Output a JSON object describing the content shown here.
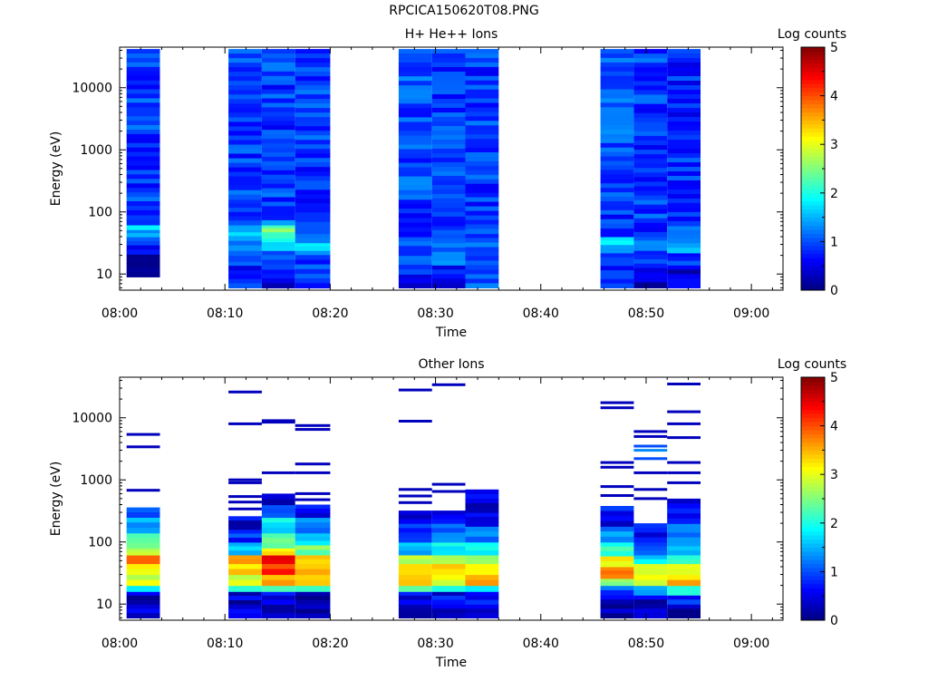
{
  "figure": {
    "title": "RPCICA150620T08.PNG"
  },
  "chart_data": [
    {
      "type": "heatmap",
      "title": "H+ He++ Ions",
      "xlabel": "Time",
      "ylabel": "Energy (eV)",
      "x_ticks": [
        "08:00",
        "08:10",
        "08:20",
        "08:30",
        "08:40",
        "08:50",
        "09:00"
      ],
      "y_ticks": [
        "10",
        "100",
        "1000",
        "10000"
      ],
      "xlim": [
        "08:00",
        "09:03"
      ],
      "ylim": [
        5.5,
        45000
      ],
      "yscale": "log",
      "colorbar": {
        "label": "Log counts",
        "range": [
          0,
          5
        ],
        "ticks": [
          "0",
          "1",
          "2",
          "3",
          "4",
          "5"
        ],
        "colormap": "jet"
      },
      "columns": [
        {
          "start": "08:00:40",
          "end": "08:03:50",
          "bands": [
            [
              9,
              21,
              0.3
            ],
            [
              21,
              40,
              0.8
            ],
            [
              40,
              52,
              1.5
            ],
            [
              52,
              62,
              1.8
            ],
            [
              62,
              90,
              1.0
            ],
            [
              90,
              42000,
              0.9
            ]
          ]
        },
        {
          "start": "08:10:20",
          "end": "08:13:30",
          "bands": [
            [
              6,
              16,
              0.8
            ],
            [
              16,
              24,
              0.9
            ],
            [
              24,
              35,
              1.3
            ],
            [
              35,
              48,
              1.5
            ],
            [
              48,
              62,
              1.2
            ],
            [
              62,
              160,
              0.9
            ],
            [
              160,
              42000,
              0.9
            ]
          ]
        },
        {
          "start": "08:13:30",
          "end": "08:16:40",
          "bands": [
            [
              6,
              12,
              0.5
            ],
            [
              12,
              24,
              0.9
            ],
            [
              24,
              38,
              1.9
            ],
            [
              38,
              48,
              2.2
            ],
            [
              48,
              62,
              2.4
            ],
            [
              62,
              75,
              1.5
            ],
            [
              75,
              42000,
              0.9
            ]
          ]
        },
        {
          "start": "08:16:40",
          "end": "08:20:00",
          "bands": [
            [
              6,
              24,
              1.0
            ],
            [
              24,
              32,
              1.7
            ],
            [
              32,
              45,
              1.3
            ],
            [
              45,
              70,
              1.1
            ],
            [
              70,
              42000,
              0.9
            ]
          ]
        },
        {
          "start": "08:26:30",
          "end": "08:29:40",
          "bands": [
            [
              6,
              10,
              0.4
            ],
            [
              10,
              20,
              0.9
            ],
            [
              20,
              40,
              1.1
            ],
            [
              40,
              160,
              0.9
            ],
            [
              160,
              42000,
              1.0
            ]
          ]
        },
        {
          "start": "08:29:40",
          "end": "08:32:50",
          "bands": [
            [
              6,
              14,
              0.6
            ],
            [
              14,
              60,
              1.1
            ],
            [
              60,
              42000,
              0.9
            ]
          ]
        },
        {
          "start": "08:32:50",
          "end": "08:36:00",
          "bands": [
            [
              6,
              45,
              1.0
            ],
            [
              45,
              240,
              0.9
            ],
            [
              240,
              42000,
              0.9
            ]
          ]
        },
        {
          "start": "08:45:40",
          "end": "08:48:50",
          "bands": [
            [
              6,
              22,
              0.9
            ],
            [
              22,
              30,
              1.4
            ],
            [
              30,
              40,
              1.9
            ],
            [
              40,
              55,
              1.0
            ],
            [
              55,
              340,
              0.9
            ],
            [
              340,
              42000,
              1.0
            ]
          ]
        },
        {
          "start": "08:48:50",
          "end": "08:52:00",
          "bands": [
            [
              6,
              9,
              0.4
            ],
            [
              9,
              24,
              0.8
            ],
            [
              24,
              30,
              1.5
            ],
            [
              30,
              40,
              1.2
            ],
            [
              40,
              42000,
              0.9
            ]
          ]
        },
        {
          "start": "08:52:00",
          "end": "08:55:10",
          "bands": [
            [
              6,
              14,
              0.4
            ],
            [
              14,
              22,
              0.9
            ],
            [
              22,
              32,
              1.4
            ],
            [
              32,
              60,
              1.1
            ],
            [
              60,
              42000,
              0.8
            ]
          ]
        }
      ]
    },
    {
      "type": "heatmap",
      "title": "Other Ions",
      "xlabel": "Time",
      "ylabel": "Energy (eV)",
      "x_ticks": [
        "08:00",
        "08:10",
        "08:20",
        "08:30",
        "08:40",
        "08:50",
        "09:00"
      ],
      "y_ticks": [
        "10",
        "100",
        "1000",
        "10000"
      ],
      "xlim": [
        "08:00",
        "09:03"
      ],
      "ylim": [
        5.5,
        45000
      ],
      "yscale": "log",
      "colorbar": {
        "label": "Log counts",
        "range": [
          0,
          5
        ],
        "ticks": [
          "0",
          "1",
          "2",
          "3",
          "4",
          "5"
        ],
        "colormap": "jet"
      },
      "columns": [
        {
          "start": "08:00:40",
          "end": "08:03:50",
          "bands": [
            [
              6,
              10,
              0.6
            ],
            [
              10,
              16,
              0.3
            ],
            [
              16,
              20,
              2.0
            ],
            [
              20,
              30,
              2.9
            ],
            [
              30,
              45,
              3.2
            ],
            [
              45,
              62,
              3.7
            ],
            [
              62,
              80,
              2.8
            ],
            [
              80,
              140,
              2.2
            ],
            [
              140,
              250,
              1.5
            ],
            [
              250,
              360,
              0.8
            ]
          ],
          "lines": [
            [
              680,
              0.3
            ],
            [
              3400,
              0.3
            ],
            [
              5400,
              0.3
            ]
          ]
        },
        {
          "start": "08:10:20",
          "end": "08:13:30",
          "bands": [
            [
              6,
              16,
              0.4
            ],
            [
              16,
              20,
              2.0
            ],
            [
              20,
              30,
              3.0
            ],
            [
              30,
              45,
              3.4
            ],
            [
              45,
              62,
              3.6
            ],
            [
              62,
              100,
              1.5
            ],
            [
              100,
              160,
              0.8
            ],
            [
              160,
              260,
              0.5
            ]
          ],
          "lines": [
            [
              340,
              0.3
            ],
            [
              440,
              0.3
            ],
            [
              540,
              0.3
            ],
            [
              900,
              0.3
            ],
            [
              1000,
              0.3
            ],
            [
              8000,
              0.3
            ],
            [
              26000,
              0.3
            ]
          ]
        },
        {
          "start": "08:13:30",
          "end": "08:16:40",
          "bands": [
            [
              6,
              10,
              0.3
            ],
            [
              10,
              16,
              0.6
            ],
            [
              16,
              20,
              2.0
            ],
            [
              20,
              30,
              3.6
            ],
            [
              30,
              45,
              4.2
            ],
            [
              45,
              62,
              4.4
            ],
            [
              62,
              80,
              3.2
            ],
            [
              80,
              140,
              2.4
            ],
            [
              140,
              250,
              1.8
            ],
            [
              250,
              400,
              1.2
            ],
            [
              400,
              600,
              0.5
            ]
          ],
          "lines": [
            [
              1300,
              0.3
            ],
            [
              8500,
              0.3
            ],
            [
              9000,
              0.3
            ]
          ]
        },
        {
          "start": "08:16:40",
          "end": "08:20:00",
          "bands": [
            [
              6,
              16,
              0.3
            ],
            [
              16,
              20,
              2.0
            ],
            [
              20,
              30,
              3.2
            ],
            [
              30,
              45,
              3.6
            ],
            [
              45,
              62,
              3.4
            ],
            [
              62,
              90,
              2.5
            ],
            [
              90,
              140,
              1.8
            ],
            [
              140,
              250,
              1.2
            ],
            [
              250,
              400,
              0.6
            ]
          ],
          "lines": [
            [
              480,
              0.3
            ],
            [
              600,
              0.3
            ],
            [
              1300,
              0.3
            ],
            [
              1800,
              0.3
            ],
            [
              6500,
              0.3
            ],
            [
              7500,
              0.3
            ]
          ]
        },
        {
          "start": "08:26:30",
          "end": "08:29:40",
          "bands": [
            [
              6,
              10,
              0.3
            ],
            [
              10,
              16,
              0.6
            ],
            [
              16,
              20,
              2.2
            ],
            [
              20,
              30,
              3.2
            ],
            [
              30,
              45,
              3.5
            ],
            [
              45,
              62,
              2.8
            ],
            [
              62,
              100,
              1.5
            ],
            [
              100,
              200,
              0.7
            ],
            [
              200,
              320,
              0.4
            ]
          ],
          "lines": [
            [
              430,
              0.3
            ],
            [
              550,
              0.3
            ],
            [
              700,
              0.3
            ],
            [
              8800,
              0.3
            ],
            [
              28000,
              0.3
            ]
          ]
        },
        {
          "start": "08:29:40",
          "end": "08:32:50",
          "bands": [
            [
              6,
              10,
              0.3
            ],
            [
              10,
              16,
              0.6
            ],
            [
              16,
              20,
              2.2
            ],
            [
              20,
              30,
              3.0
            ],
            [
              30,
              45,
              3.4
            ],
            [
              45,
              62,
              2.5
            ],
            [
              62,
              100,
              1.8
            ],
            [
              100,
              200,
              1.2
            ],
            [
              200,
              320,
              0.6
            ]
          ],
          "lines": [
            [
              650,
              0.3
            ],
            [
              850,
              0.3
            ],
            [
              34000,
              0.3
            ]
          ]
        },
        {
          "start": "08:32:50",
          "end": "08:36:00",
          "bands": [
            [
              6,
              10,
              0.3
            ],
            [
              10,
              16,
              0.6
            ],
            [
              16,
              20,
              2.0
            ],
            [
              20,
              30,
              3.5
            ],
            [
              30,
              45,
              3.3
            ],
            [
              45,
              62,
              2.6
            ],
            [
              62,
              100,
              1.8
            ],
            [
              100,
              180,
              1.1
            ],
            [
              180,
              300,
              0.7
            ],
            [
              300,
              700,
              0.4
            ]
          ]
        },
        {
          "start": "08:45:40",
          "end": "08:48:50",
          "bands": [
            [
              6,
              10,
              0.3
            ],
            [
              10,
              14,
              0.5
            ],
            [
              14,
              20,
              1.0
            ],
            [
              20,
              26,
              2.5
            ],
            [
              26,
              40,
              3.7
            ],
            [
              40,
              60,
              3.2
            ],
            [
              60,
              100,
              2.1
            ],
            [
              100,
              180,
              1.2
            ],
            [
              180,
              380,
              0.6
            ]
          ],
          "lines": [
            [
              560,
              0.3
            ],
            [
              780,
              0.3
            ],
            [
              1600,
              0.3
            ],
            [
              1900,
              0.3
            ],
            [
              14500,
              0.3
            ],
            [
              17500,
              0.3
            ]
          ]
        },
        {
          "start": "08:48:50",
          "end": "08:52:00",
          "bands": [
            [
              6,
              14,
              0.3
            ],
            [
              14,
              20,
              1.5
            ],
            [
              20,
              30,
              3.0
            ],
            [
              30,
              45,
              2.8
            ],
            [
              45,
              62,
              1.8
            ],
            [
              62,
              100,
              1.2
            ],
            [
              100,
              200,
              0.6
            ]
          ],
          "lines": [
            [
              500,
              0.3
            ],
            [
              700,
              0.3
            ],
            [
              1300,
              0.3
            ],
            [
              2200,
              1.0
            ],
            [
              3000,
              1.3
            ],
            [
              3500,
              1.0
            ],
            [
              5000,
              0.3
            ],
            [
              6000,
              0.3
            ]
          ]
        },
        {
          "start": "08:52:00",
          "end": "08:55:10",
          "bands": [
            [
              6,
              10,
              0.3
            ],
            [
              10,
              14,
              0.8
            ],
            [
              14,
              20,
              2.0
            ],
            [
              20,
              30,
              3.4
            ],
            [
              30,
              45,
              2.8
            ],
            [
              45,
              62,
              2.0
            ],
            [
              62,
              100,
              1.5
            ],
            [
              100,
              200,
              1.1
            ],
            [
              200,
              500,
              0.6
            ]
          ],
          "lines": [
            [
              900,
              0.3
            ],
            [
              1300,
              0.3
            ],
            [
              1900,
              0.3
            ],
            [
              4800,
              0.3
            ],
            [
              8000,
              0.3
            ],
            [
              12500,
              0.3
            ],
            [
              35000,
              0.3
            ]
          ]
        }
      ]
    }
  ]
}
